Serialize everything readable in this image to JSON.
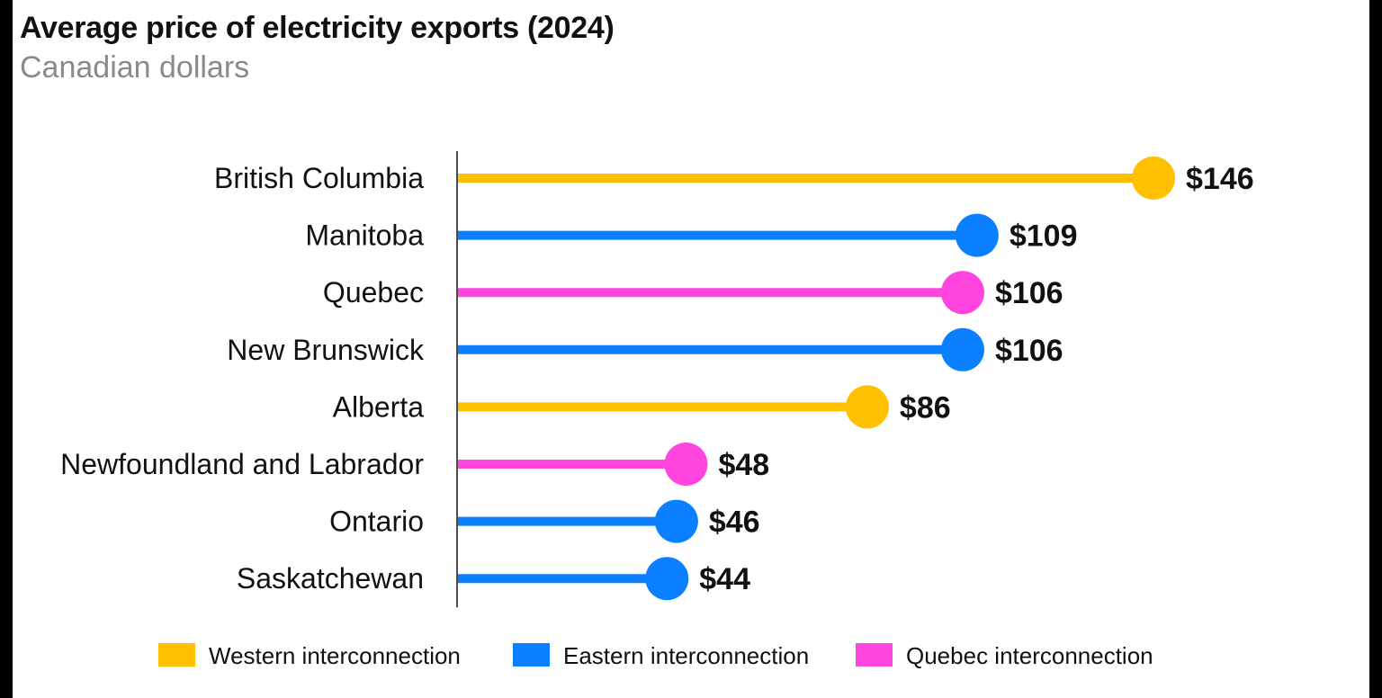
{
  "chart_data": {
    "type": "lollipop",
    "title": "Average price of electricity exports (2024)",
    "subtitle": "Canadian dollars",
    "categories": [
      "British Columbia",
      "Manitoba",
      "Quebec",
      "New Brunswick",
      "Alberta",
      "Newfoundland and Labrador",
      "Ontario",
      "Saskatchewan"
    ],
    "values": [
      146,
      109,
      106,
      106,
      86,
      48,
      46,
      44
    ],
    "value_labels": [
      "$146",
      "$109",
      "$106",
      "$106",
      "$86",
      "$48",
      "$46",
      "$44"
    ],
    "groups": [
      "western",
      "eastern",
      "quebec",
      "eastern",
      "western",
      "quebec",
      "eastern",
      "eastern"
    ],
    "legend": [
      {
        "key": "western",
        "label": "Western interconnection",
        "color": "#FFC000"
      },
      {
        "key": "eastern",
        "label": "Eastern interconnection",
        "color": "#0A7FFF"
      },
      {
        "key": "quebec",
        "label": "Quebec interconnection",
        "color": "#FF44E0"
      }
    ],
    "legend_position": "bottom",
    "grid": false,
    "xlim": [
      0,
      146
    ]
  }
}
